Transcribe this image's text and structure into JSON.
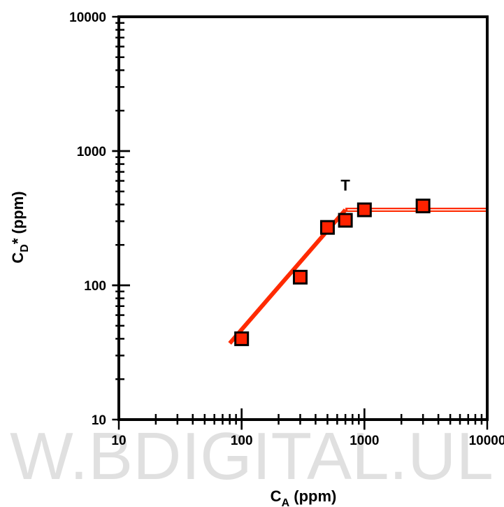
{
  "chart_data": {
    "type": "scatter",
    "x_scale": "log",
    "y_scale": "log",
    "xlim": [
      10,
      10000
    ],
    "ylim": [
      10,
      10000
    ],
    "xlabel": "C_A (ppm)",
    "xlabel_main": "C",
    "xlabel_sub": "A",
    "xlabel_unit": " (ppm)",
    "ylabel": "C_D* (ppm)",
    "ylabel_main": "C",
    "ylabel_sub": "D",
    "ylabel_unit": "* (ppm)",
    "x_ticks": [
      "10",
      "100",
      "1000",
      "10000"
    ],
    "y_ticks": [
      "10",
      "100",
      "1000",
      "10000"
    ],
    "grid": false,
    "points": [
      {
        "x": 100,
        "y": 40
      },
      {
        "x": 300,
        "y": 115
      },
      {
        "x": 500,
        "y": 270
      },
      {
        "x": 700,
        "y": 305
      },
      {
        "x": 1000,
        "y": 365
      },
      {
        "x": 3000,
        "y": 390
      }
    ],
    "fit_lines": [
      {
        "x": [
          80,
          700
        ],
        "y": [
          37,
          365
        ]
      },
      {
        "x": [
          700,
          10000
        ],
        "y": [
          365,
          365
        ]
      }
    ],
    "annotations": [
      {
        "text": "T",
        "x": 700,
        "y": 560
      }
    ],
    "colors": {
      "marker": "#ff2200",
      "line": "#ff2a00",
      "axis": "#000000"
    }
  },
  "watermark": "W.BDIGITAL.UL"
}
